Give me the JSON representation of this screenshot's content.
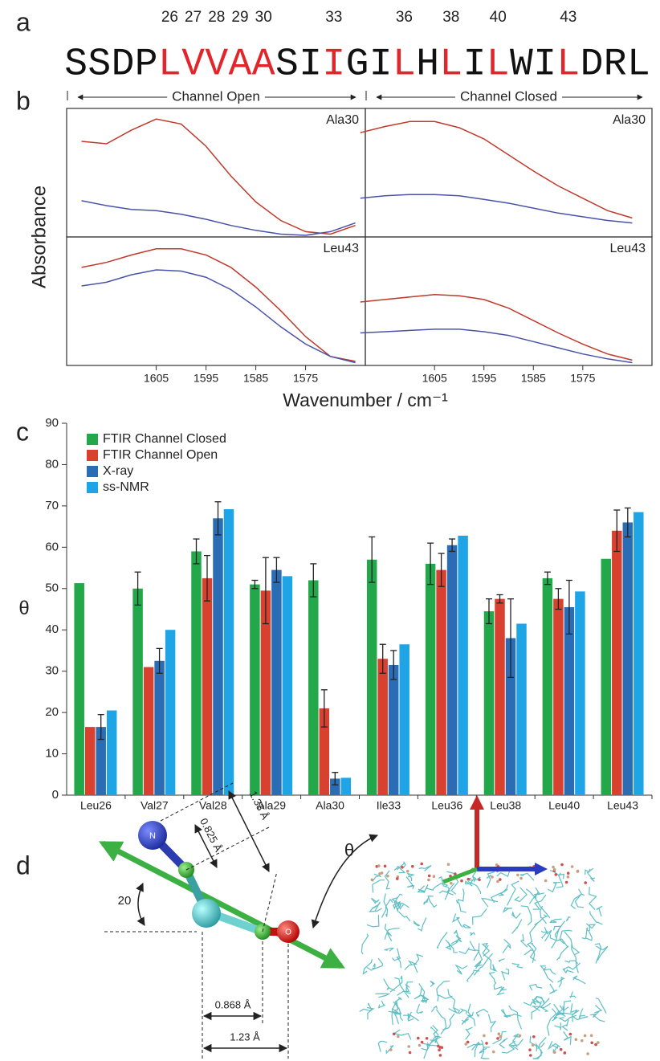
{
  "panel_labels": [
    "a",
    "b",
    "c",
    "d"
  ],
  "sequence": {
    "color": "#111111",
    "highlight_color": "#e0262b",
    "residues": [
      {
        "letter": "S"
      },
      {
        "letter": "S"
      },
      {
        "letter": "D"
      },
      {
        "letter": "P"
      },
      {
        "letter": "L",
        "number": 26
      },
      {
        "letter": "V",
        "number": 27
      },
      {
        "letter": "V",
        "number": 28
      },
      {
        "letter": "A",
        "number": 29
      },
      {
        "letter": "A",
        "number": 30
      },
      {
        "letter": "S"
      },
      {
        "letter": "I"
      },
      {
        "letter": "I",
        "number": 33
      },
      {
        "letter": "G"
      },
      {
        "letter": "I"
      },
      {
        "letter": "L",
        "number": 36
      },
      {
        "letter": "H"
      },
      {
        "letter": "L",
        "number": 38
      },
      {
        "letter": "I"
      },
      {
        "letter": "L",
        "number": 40
      },
      {
        "letter": "W"
      },
      {
        "letter": "I"
      },
      {
        "letter": "L",
        "number": 43
      },
      {
        "letter": "D"
      },
      {
        "letter": "R"
      },
      {
        "letter": "L"
      }
    ]
  },
  "chart_data": [
    {
      "type": "line",
      "ylabel": "Absorbance",
      "xlabel": "Wavenumber / cm⁻¹",
      "column_titles": [
        "Channel Open",
        "Channel Closed"
      ],
      "panels": [
        {
          "title": "Ala30",
          "xlim": [
            1623,
            1563
          ],
          "ylim": [
            0,
            1
          ],
          "xticks": [
            1605,
            1595,
            1585,
            1575
          ],
          "x": [
            1620,
            1615,
            1610,
            1605,
            1600,
            1595,
            1590,
            1585,
            1580,
            1575,
            1570,
            1565
          ],
          "series": [
            {
              "color": "#c0392b",
              "values": [
                0.76,
                0.74,
                0.85,
                0.94,
                0.9,
                0.72,
                0.48,
                0.27,
                0.12,
                0.03,
                0.01,
                0.08
              ]
            },
            {
              "color": "#4a52a8",
              "values": [
                0.28,
                0.24,
                0.21,
                0.2,
                0.17,
                0.13,
                0.08,
                0.04,
                0.01,
                0.0,
                0.03,
                0.1
              ]
            }
          ]
        },
        {
          "title": "Ala30",
          "xlim": [
            1619,
            1561
          ],
          "ylim": [
            0,
            1
          ],
          "xticks": [
            1605,
            1595,
            1585,
            1575
          ],
          "x": [
            1620,
            1615,
            1610,
            1605,
            1600,
            1595,
            1590,
            1585,
            1580,
            1575,
            1570,
            1565
          ],
          "series": [
            {
              "color": "#c0392b",
              "values": [
                0.83,
                0.88,
                0.92,
                0.92,
                0.87,
                0.78,
                0.65,
                0.52,
                0.4,
                0.3,
                0.2,
                0.14
              ]
            },
            {
              "color": "#4a52a8",
              "values": [
                0.3,
                0.32,
                0.33,
                0.33,
                0.32,
                0.29,
                0.26,
                0.22,
                0.18,
                0.15,
                0.12,
                0.1
              ]
            }
          ]
        },
        {
          "title": "Leu43",
          "xlim": [
            1623,
            1563
          ],
          "ylim": [
            0,
            1
          ],
          "xticks": [
            1605,
            1595,
            1585,
            1575
          ],
          "x": [
            1620,
            1615,
            1610,
            1605,
            1600,
            1595,
            1590,
            1585,
            1580,
            1575,
            1570,
            1565
          ],
          "series": [
            {
              "color": "#c0392b",
              "values": [
                0.78,
                0.82,
                0.88,
                0.93,
                0.93,
                0.88,
                0.78,
                0.62,
                0.43,
                0.22,
                0.06,
                0.02
              ]
            },
            {
              "color": "#4a52a8",
              "values": [
                0.63,
                0.66,
                0.72,
                0.76,
                0.75,
                0.7,
                0.6,
                0.46,
                0.3,
                0.16,
                0.06,
                0.01
              ]
            }
          ]
        },
        {
          "title": "Leu43",
          "xlim": [
            1619,
            1561
          ],
          "ylim": [
            0,
            1
          ],
          "xticks": [
            1605,
            1595,
            1585,
            1575
          ],
          "x": [
            1620,
            1615,
            1610,
            1605,
            1600,
            1595,
            1590,
            1585,
            1580,
            1575,
            1570,
            1565
          ],
          "series": [
            {
              "color": "#c0392b",
              "values": [
                0.5,
                0.52,
                0.54,
                0.56,
                0.55,
                0.52,
                0.45,
                0.35,
                0.25,
                0.16,
                0.08,
                0.03
              ]
            },
            {
              "color": "#4a52a8",
              "values": [
                0.25,
                0.26,
                0.27,
                0.28,
                0.28,
                0.26,
                0.23,
                0.18,
                0.13,
                0.08,
                0.04,
                0.01
              ]
            }
          ]
        }
      ]
    },
    {
      "type": "bar",
      "ylabel": "θ",
      "ylim": [
        0,
        90
      ],
      "yticks": [
        0,
        10,
        20,
        30,
        40,
        50,
        60,
        70,
        80,
        90
      ],
      "legend": "top-left",
      "categories": [
        "Leu26",
        "Val27",
        "Val28",
        "Ala29",
        "Ala30",
        "Ile33",
        "Leu36",
        "Leu38",
        "Leu40",
        "Leu43"
      ],
      "series": [
        {
          "name": "FTIR Channel Closed",
          "color": "#22a84a",
          "values": [
            51.3,
            50,
            59,
            51,
            52,
            57,
            56,
            44.5,
            52.5,
            57.2
          ],
          "errors": [
            null,
            4,
            3,
            1,
            4,
            5.5,
            5,
            3,
            1.5,
            null
          ]
        },
        {
          "name": "FTIR Channel Open",
          "color": "#d8412f",
          "values": [
            16.5,
            31,
            52.5,
            49.5,
            21,
            33,
            54.5,
            47.5,
            47.5,
            64
          ],
          "errors": [
            null,
            null,
            5.5,
            8,
            4.5,
            3.5,
            4,
            1,
            2.5,
            5
          ]
        },
        {
          "name": "X-ray",
          "color": "#2a6db5",
          "values": [
            16.5,
            32.5,
            67,
            54.5,
            4,
            31.5,
            60.5,
            38,
            45.5,
            66
          ],
          "errors": [
            3,
            3,
            4,
            3,
            1.5,
            3.5,
            1.5,
            9.5,
            6.5,
            3.5
          ]
        },
        {
          "name": "ss-NMR",
          "color": "#1fa5e6",
          "values": [
            20.5,
            40,
            69.2,
            53,
            4.2,
            36.5,
            62.8,
            41.5,
            49.3,
            68.5
          ]
        }
      ]
    }
  ],
  "diagram": {
    "atoms": [
      "N",
      "O"
    ],
    "angle_label": "θ",
    "tilt_label": "20",
    "distances": [
      "0.825 Å",
      "1.33 Å",
      "0.868 Å",
      "1.23 Å"
    ]
  }
}
